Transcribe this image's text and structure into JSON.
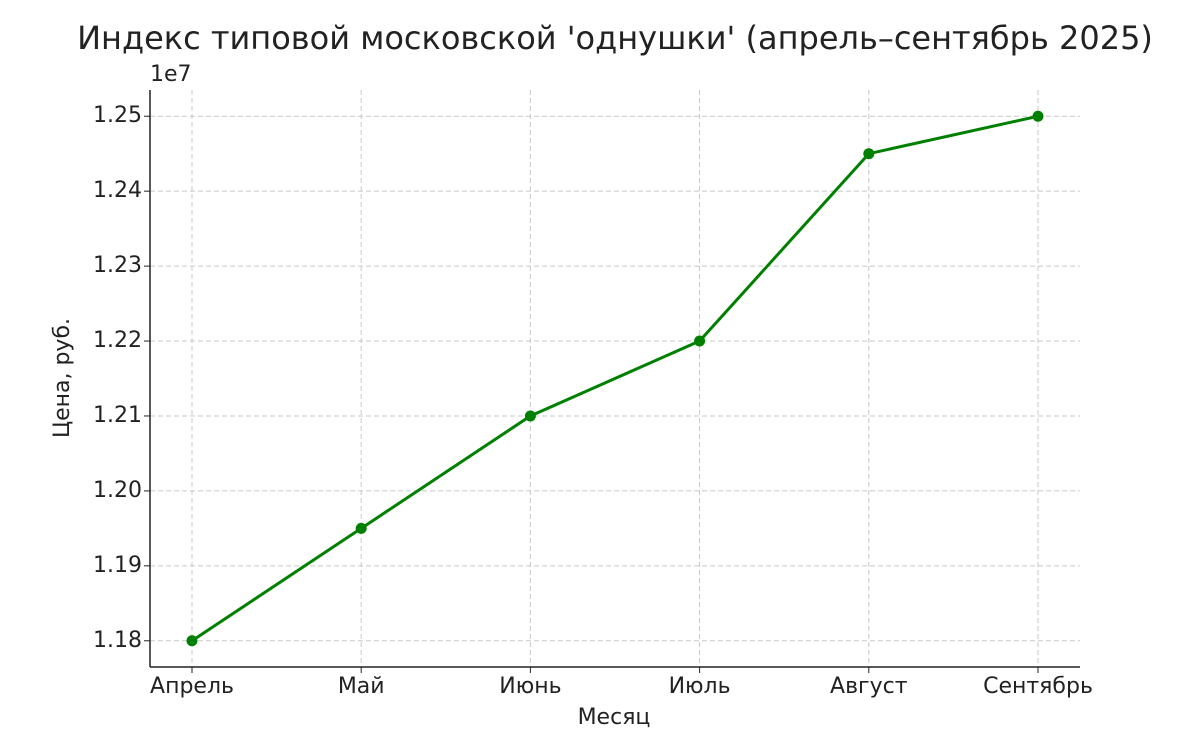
{
  "chart_data": {
    "type": "line",
    "title": "Индекс типовой московской 'однушки' (апрель–сентябрь 2025)",
    "x_label": "Месяц",
    "y_label": "Цена, руб.",
    "y_offset_label": "1e7",
    "categories": [
      "Апрель",
      "Май",
      "Июнь",
      "Июль",
      "Август",
      "Сентябрь"
    ],
    "values": [
      11800000,
      11950000,
      12100000,
      12200000,
      12450000,
      12500000
    ],
    "color": "#008000",
    "ylim": [
      11765000,
      12535000
    ],
    "yticks": [
      {
        "value": 11800000,
        "label": "1.18"
      },
      {
        "value": 11900000,
        "label": "1.19"
      },
      {
        "value": 12000000,
        "label": "1.20"
      },
      {
        "value": 12100000,
        "label": "1.21"
      },
      {
        "value": 12200000,
        "label": "1.22"
      },
      {
        "value": 12300000,
        "label": "1.23"
      },
      {
        "value": 12400000,
        "label": "1.24"
      },
      {
        "value": 12500000,
        "label": "1.25"
      }
    ],
    "grid": true
  }
}
